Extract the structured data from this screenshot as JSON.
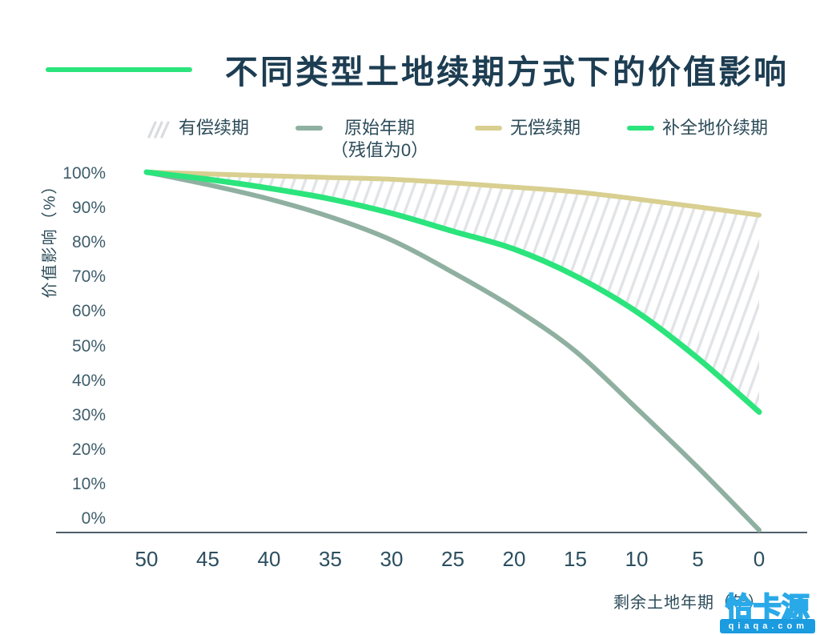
{
  "header": {
    "title": "不同类型土地续期方式下的价值影响",
    "accent_dash_color": "#2be47c",
    "title_color": "#1d3d52"
  },
  "legend": {
    "items": [
      {
        "label": "有偿续期",
        "swatch": "hatch",
        "color": "#d9dbde"
      },
      {
        "label": "原始年期",
        "sublabel": "（残值为0）",
        "swatch": "line",
        "color": "#8fb0a1"
      },
      {
        "label": "无偿续期",
        "swatch": "line",
        "color": "#d8cf90"
      },
      {
        "label": "补全地价续期",
        "swatch": "line",
        "color": "#2be47c"
      }
    ]
  },
  "chart_data": {
    "type": "line",
    "title": "不同类型土地续期方式下的价值影响",
    "xlabel": "剩余土地年期（年）",
    "ylabel": "价值影响（%）",
    "x": [
      50,
      45,
      40,
      35,
      30,
      25,
      20,
      15,
      10,
      5,
      0
    ],
    "x_tick_labels": [
      "50",
      "45",
      "40",
      "35",
      "30",
      "25",
      "20",
      "15",
      "10",
      "5",
      "0"
    ],
    "y_tick_labels": [
      "100%",
      "90%",
      "80%",
      "70%",
      "60%",
      "50%",
      "40%",
      "30%",
      "20%",
      "10%",
      "0%"
    ],
    "ylim": [
      0,
      100
    ],
    "x_reversed": true,
    "grid": false,
    "legend_position": "top",
    "series": [
      {
        "name": "无偿续期",
        "color": "#d8cf90",
        "width": 6,
        "values": [
          100,
          99.5,
          99,
          98.5,
          98,
          97,
          95.8,
          94.5,
          92.5,
          90.3,
          88
        ]
      },
      {
        "name": "补全地价续期",
        "color": "#2be47c",
        "width": 7,
        "values": [
          100,
          98,
          95.5,
          92.5,
          88.5,
          83.5,
          78.5,
          71,
          61,
          48,
          33
        ]
      },
      {
        "name": "原始年期（残值为0）",
        "color": "#8fb0a1",
        "width": 6,
        "values": [
          100,
          96.5,
          92.5,
          87.5,
          81,
          72,
          62,
          50,
          34,
          17.5,
          0
        ]
      }
    ],
    "band": {
      "name": "有偿续期",
      "between": [
        "无偿续期",
        "补全地价续期"
      ],
      "style": "diagonal-hatch",
      "hatch_color": "#e1e3e6"
    },
    "axis_line_color": "#4e5e68"
  },
  "watermark": {
    "logo_text": "恰卡源",
    "domain": "qiaqa.com",
    "logo_color": "#2aa9e8",
    "bar_color": "#1b9be0"
  }
}
